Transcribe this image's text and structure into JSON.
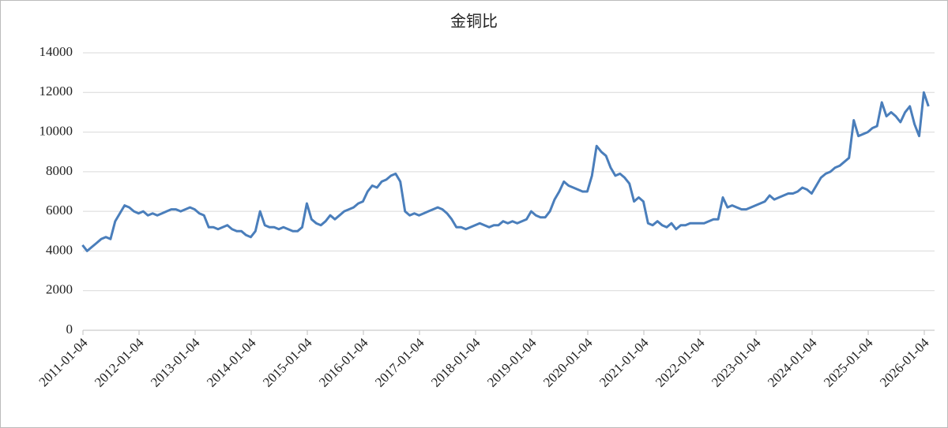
{
  "chart_data": {
    "type": "line",
    "title": "金铜比",
    "x": [
      "2011-01",
      "2011-02",
      "2011-03",
      "2011-04",
      "2011-05",
      "2011-06",
      "2011-07",
      "2011-08",
      "2011-09",
      "2011-10",
      "2011-11",
      "2011-12",
      "2012-01",
      "2012-02",
      "2012-03",
      "2012-04",
      "2012-05",
      "2012-06",
      "2012-07",
      "2012-08",
      "2012-09",
      "2012-10",
      "2012-11",
      "2012-12",
      "2013-01",
      "2013-02",
      "2013-03",
      "2013-04",
      "2013-05",
      "2013-06",
      "2013-07",
      "2013-08",
      "2013-09",
      "2013-10",
      "2013-11",
      "2013-12",
      "2014-01",
      "2014-02",
      "2014-03",
      "2014-04",
      "2014-05",
      "2014-06",
      "2014-07",
      "2014-08",
      "2014-09",
      "2014-10",
      "2014-11",
      "2014-12",
      "2015-01",
      "2015-02",
      "2015-03",
      "2015-04",
      "2015-05",
      "2015-06",
      "2015-07",
      "2015-08",
      "2015-09",
      "2015-10",
      "2015-11",
      "2015-12",
      "2016-01",
      "2016-02",
      "2016-03",
      "2016-04",
      "2016-05",
      "2016-06",
      "2016-07",
      "2016-08",
      "2016-09",
      "2016-10",
      "2016-11",
      "2016-12",
      "2017-01",
      "2017-02",
      "2017-03",
      "2017-04",
      "2017-05",
      "2017-06",
      "2017-07",
      "2017-08",
      "2017-09",
      "2017-10",
      "2017-11",
      "2017-12",
      "2018-01",
      "2018-02",
      "2018-03",
      "2018-04",
      "2018-05",
      "2018-06",
      "2018-07",
      "2018-08",
      "2018-09",
      "2018-10",
      "2018-11",
      "2018-12",
      "2019-01",
      "2019-02",
      "2019-03",
      "2019-04",
      "2019-05",
      "2019-06",
      "2019-07",
      "2019-08",
      "2019-09",
      "2019-10",
      "2019-11",
      "2019-12",
      "2020-01",
      "2020-02",
      "2020-03",
      "2020-04",
      "2020-05",
      "2020-06",
      "2020-07",
      "2020-08",
      "2020-09",
      "2020-10",
      "2020-11",
      "2020-12",
      "2021-01",
      "2021-02",
      "2021-03",
      "2021-04",
      "2021-05",
      "2021-06",
      "2021-07",
      "2021-08",
      "2021-09",
      "2021-10",
      "2021-11",
      "2021-12",
      "2022-01",
      "2022-02",
      "2022-03",
      "2022-04",
      "2022-05",
      "2022-06",
      "2022-07",
      "2022-08",
      "2022-09",
      "2022-10",
      "2022-11",
      "2022-12",
      "2023-01",
      "2023-02",
      "2023-03",
      "2023-04",
      "2023-05",
      "2023-06",
      "2023-07",
      "2023-08",
      "2023-09",
      "2023-10",
      "2023-11",
      "2023-12",
      "2024-01",
      "2024-02",
      "2024-03",
      "2024-04",
      "2024-05",
      "2024-06",
      "2024-07",
      "2024-08",
      "2024-09",
      "2024-10",
      "2024-11",
      "2024-12",
      "2025-01",
      "2025-02",
      "2025-03",
      "2025-04",
      "2025-05",
      "2025-06",
      "2025-07",
      "2025-08",
      "2025-09",
      "2025-10",
      "2025-11",
      "2025-12",
      "2026-01",
      "2026-02"
    ],
    "series": [
      {
        "color": "#4a7ebb",
        "values": [
          4300,
          4000,
          4200,
          4400,
          4600,
          4700,
          4600,
          5500,
          5900,
          6300,
          6200,
          6000,
          5900,
          6000,
          5800,
          5900,
          5800,
          5900,
          6000,
          6100,
          6100,
          6000,
          6100,
          6200,
          6100,
          5900,
          5800,
          5200,
          5200,
          5100,
          5200,
          5300,
          5100,
          5000,
          5000,
          4800,
          4700,
          5000,
          6000,
          5300,
          5200,
          5200,
          5100,
          5200,
          5100,
          5000,
          5000,
          5200,
          6400,
          5600,
          5400,
          5300,
          5500,
          5800,
          5600,
          5800,
          6000,
          6100,
          6200,
          6400,
          6500,
          7000,
          7300,
          7200,
          7500,
          7600,
          7800,
          7900,
          7500,
          6000,
          5800,
          5900,
          5800,
          5900,
          6000,
          6100,
          6200,
          6100,
          5900,
          5600,
          5200,
          5200,
          5100,
          5200,
          5300,
          5400,
          5300,
          5200,
          5300,
          5300,
          5500,
          5400,
          5500,
          5400,
          5500,
          5600,
          6000,
          5800,
          5700,
          5700,
          6000,
          6600,
          7000,
          7500,
          7300,
          7200,
          7100,
          7000,
          7000,
          7800,
          9300,
          9000,
          8800,
          8200,
          7800,
          7900,
          7700,
          7400,
          6500,
          6700,
          6500,
          5400,
          5300,
          5500,
          5300,
          5200,
          5400,
          5100,
          5300,
          5300,
          5400,
          5400,
          5400,
          5400,
          5500,
          5600,
          5600,
          6700,
          6200,
          6300,
          6200,
          6100,
          6100,
          6200,
          6300,
          6400,
          6500,
          6800,
          6600,
          6700,
          6800,
          6900,
          6900,
          7000,
          7200,
          7100,
          6900,
          7300,
          7700,
          7900,
          8000,
          8200,
          8300,
          8500,
          8700,
          10600,
          9800,
          9900,
          10000,
          10200,
          10300,
          11500,
          10800,
          11000,
          10800,
          10500,
          11000,
          11300,
          10400,
          9800,
          12000,
          11300
        ]
      }
    ],
    "xticks": [
      "2011-01-04",
      "2012-01-04",
      "2013-01-04",
      "2014-01-04",
      "2015-01-04",
      "2016-01-04",
      "2017-01-04",
      "2018-01-04",
      "2019-01-04",
      "2020-01-04",
      "2021-01-04",
      "2022-01-04",
      "2023-01-04",
      "2024-01-04",
      "2025-01-04",
      "2026-01-04"
    ],
    "ylim": [
      0,
      14000
    ],
    "yticks": [
      0,
      2000,
      4000,
      6000,
      8000,
      10000,
      12000,
      14000
    ],
    "grid": true
  }
}
